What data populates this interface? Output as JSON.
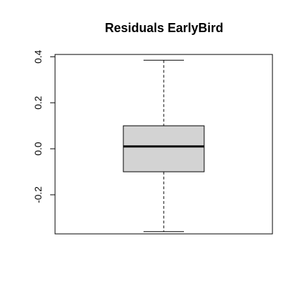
{
  "chart_data": {
    "type": "boxplot",
    "title": "Residuals  EarlyBird",
    "xlabel": "",
    "ylabel": "",
    "ylim": [
      -0.37,
      0.41
    ],
    "y_ticks": [
      -0.2,
      0.0,
      0.2,
      0.4
    ],
    "y_tick_labels": [
      "-0.2",
      "0.0",
      "0.2",
      "0.4"
    ],
    "box": {
      "whisker_low": -0.36,
      "q1": -0.1,
      "median": 0.01,
      "q3": 0.1,
      "whisker_high": 0.385
    },
    "colors": {
      "box_fill": "#d3d3d3",
      "stroke": "#000000",
      "background": "#ffffff"
    },
    "grid": false
  }
}
